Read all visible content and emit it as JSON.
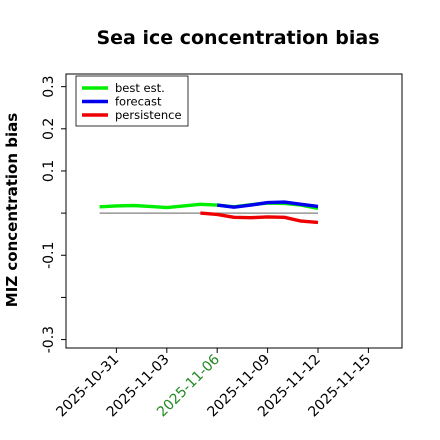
{
  "chart_data": {
    "type": "line",
    "title": "Sea ice concentration bias",
    "xlabel": "",
    "ylabel": "MIZ concentration bias",
    "xlim": [
      "2025-10-28",
      "2025-11-17"
    ],
    "ylim": [
      -0.32,
      0.33
    ],
    "x_ticks": [
      "2025-10-31",
      "2025-11-03",
      "2025-11-06",
      "2025-11-09",
      "2025-11-12",
      "2025-11-15"
    ],
    "x_tick_colors": [
      "#000000",
      "#000000",
      "#228b22",
      "#000000",
      "#000000",
      "#000000"
    ],
    "y_ticks": [
      -0.3,
      -0.2,
      -0.1,
      0.0,
      0.1,
      0.2,
      0.3
    ],
    "y_tick_labels": [
      "-0.3",
      "",
      "-0.1",
      "",
      "0.1",
      "0.2",
      "0.3"
    ],
    "grid": false,
    "legend_position": "top-left",
    "reference_line": {
      "y": 0,
      "x_start": "2025-10-30",
      "x_end": "2025-11-12",
      "color": "#808080"
    },
    "series": [
      {
        "name": "best est.",
        "color": "#00ee00",
        "x": [
          "2025-10-30",
          "2025-10-31",
          "2025-11-01",
          "2025-11-02",
          "2025-11-03",
          "2025-11-04",
          "2025-11-05",
          "2025-11-06",
          "2025-11-07",
          "2025-11-08",
          "2025-11-09",
          "2025-11-10",
          "2025-11-11",
          "2025-11-12"
        ],
        "values": [
          0.015,
          0.017,
          0.018,
          0.016,
          0.013,
          0.017,
          0.021,
          0.019,
          0.015,
          0.02,
          0.024,
          0.023,
          0.019,
          0.011
        ]
      },
      {
        "name": "forecast",
        "color": "#0000ee",
        "x": [
          "2025-11-06",
          "2025-11-07",
          "2025-11-08",
          "2025-11-09",
          "2025-11-10",
          "2025-11-11",
          "2025-11-12"
        ],
        "values": [
          0.019,
          0.014,
          0.019,
          0.025,
          0.026,
          0.021,
          0.016
        ]
      },
      {
        "name": "persistence",
        "color": "#ee0000",
        "x": [
          "2025-11-05",
          "2025-11-06",
          "2025-11-07",
          "2025-11-08",
          "2025-11-09",
          "2025-11-10",
          "2025-11-11",
          "2025-11-12"
        ],
        "values": [
          0.0,
          -0.003,
          -0.01,
          -0.011,
          -0.009,
          -0.01,
          -0.019,
          -0.022
        ]
      }
    ]
  }
}
